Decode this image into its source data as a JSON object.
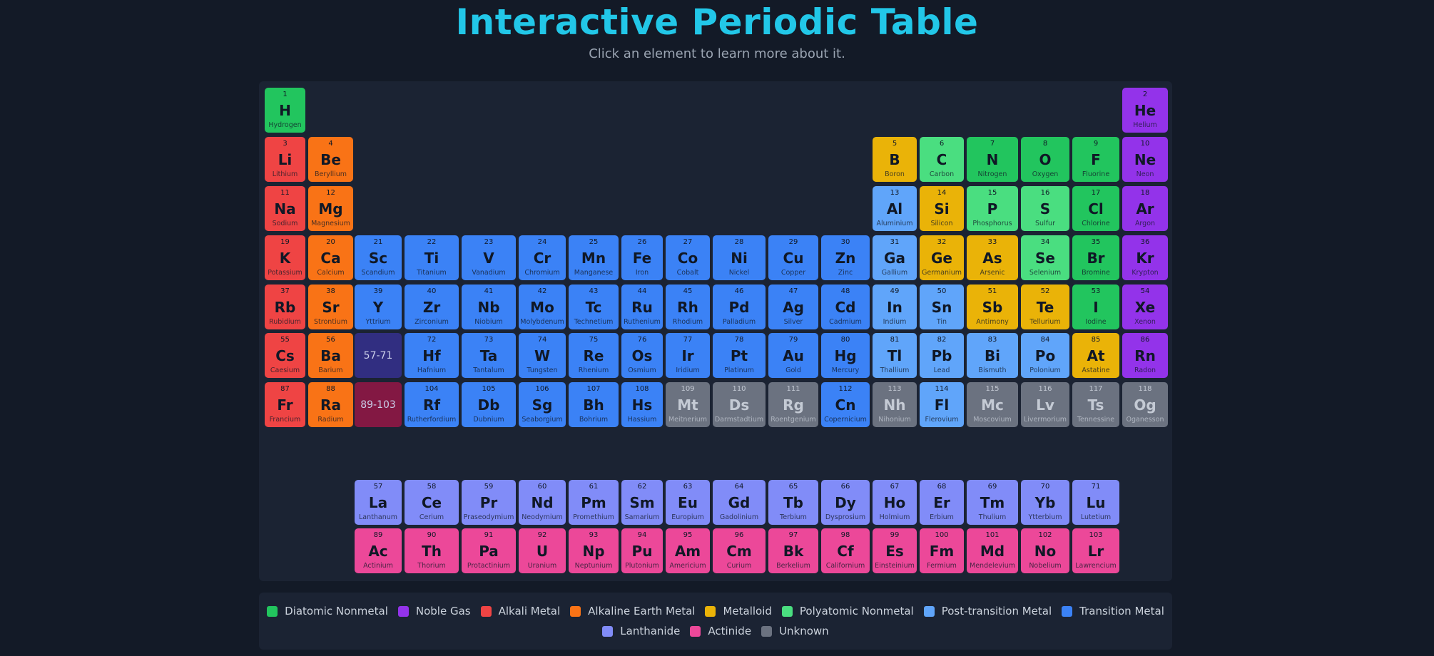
{
  "header": {
    "title": "Interactive Periodic Table",
    "subtitle": "Click an element to learn more about it."
  },
  "categories": {
    "diatomic": {
      "label": "Diatomic Nonmetal",
      "color": "#22c55e"
    },
    "noble": {
      "label": "Noble Gas",
      "color": "#9333ea"
    },
    "alkali": {
      "label": "Alkali Metal",
      "color": "#ef4444"
    },
    "alkaline": {
      "label": "Alkaline Earth Metal",
      "color": "#f97316"
    },
    "metalloid": {
      "label": "Metalloid",
      "color": "#eab308"
    },
    "polyatomic": {
      "label": "Polyatomic Nonmetal",
      "color": "#4ade80"
    },
    "post": {
      "label": "Post-transition Metal",
      "color": "#60a5fa"
    },
    "transition": {
      "label": "Transition Metal",
      "color": "#3b82f6"
    },
    "lanthanide": {
      "label": "Lanthanide",
      "color": "#818cf8"
    },
    "actinide": {
      "label": "Actinide",
      "color": "#ec4899"
    },
    "unknown": {
      "label": "Unknown",
      "color": "#6b7280"
    }
  },
  "legend": {
    "row1": [
      "diatomic",
      "noble",
      "alkali",
      "alkaline",
      "metalloid",
      "polyatomic",
      "post",
      "transition"
    ],
    "row2": [
      "lanthanide",
      "actinide",
      "unknown"
    ]
  },
  "placeholders": {
    "lanthanides": {
      "label": "57-71",
      "color": "#312e81"
    },
    "actinides": {
      "label": "89-103",
      "color": "#831843"
    }
  },
  "elements": [
    {
      "n": 1,
      "s": "H",
      "name": "Hydrogen",
      "c": "diatomic",
      "row": 1,
      "col": 1
    },
    {
      "n": 2,
      "s": "He",
      "name": "Helium",
      "c": "noble",
      "row": 1,
      "col": 18
    },
    {
      "n": 3,
      "s": "Li",
      "name": "Lithium",
      "c": "alkali",
      "row": 2,
      "col": 1
    },
    {
      "n": 4,
      "s": "Be",
      "name": "Beryllium",
      "c": "alkaline",
      "row": 2,
      "col": 2
    },
    {
      "n": 5,
      "s": "B",
      "name": "Boron",
      "c": "metalloid",
      "row": 2,
      "col": 13
    },
    {
      "n": 6,
      "s": "C",
      "name": "Carbon",
      "c": "polyatomic",
      "row": 2,
      "col": 14
    },
    {
      "n": 7,
      "s": "N",
      "name": "Nitrogen",
      "c": "diatomic",
      "row": 2,
      "col": 15
    },
    {
      "n": 8,
      "s": "O",
      "name": "Oxygen",
      "c": "diatomic",
      "row": 2,
      "col": 16
    },
    {
      "n": 9,
      "s": "F",
      "name": "Fluorine",
      "c": "diatomic",
      "row": 2,
      "col": 17
    },
    {
      "n": 10,
      "s": "Ne",
      "name": "Neon",
      "c": "noble",
      "row": 2,
      "col": 18
    },
    {
      "n": 11,
      "s": "Na",
      "name": "Sodium",
      "c": "alkali",
      "row": 3,
      "col": 1
    },
    {
      "n": 12,
      "s": "Mg",
      "name": "Magnesium",
      "c": "alkaline",
      "row": 3,
      "col": 2
    },
    {
      "n": 13,
      "s": "Al",
      "name": "Aluminium",
      "c": "post",
      "row": 3,
      "col": 13
    },
    {
      "n": 14,
      "s": "Si",
      "name": "Silicon",
      "c": "metalloid",
      "row": 3,
      "col": 14
    },
    {
      "n": 15,
      "s": "P",
      "name": "Phosphorus",
      "c": "polyatomic",
      "row": 3,
      "col": 15
    },
    {
      "n": 16,
      "s": "S",
      "name": "Sulfur",
      "c": "polyatomic",
      "row": 3,
      "col": 16
    },
    {
      "n": 17,
      "s": "Cl",
      "name": "Chlorine",
      "c": "diatomic",
      "row": 3,
      "col": 17
    },
    {
      "n": 18,
      "s": "Ar",
      "name": "Argon",
      "c": "noble",
      "row": 3,
      "col": 18
    },
    {
      "n": 19,
      "s": "K",
      "name": "Potassium",
      "c": "alkali",
      "row": 4,
      "col": 1
    },
    {
      "n": 20,
      "s": "Ca",
      "name": "Calcium",
      "c": "alkaline",
      "row": 4,
      "col": 2
    },
    {
      "n": 21,
      "s": "Sc",
      "name": "Scandium",
      "c": "transition",
      "row": 4,
      "col": 3
    },
    {
      "n": 22,
      "s": "Ti",
      "name": "Titanium",
      "c": "transition",
      "row": 4,
      "col": 4
    },
    {
      "n": 23,
      "s": "V",
      "name": "Vanadium",
      "c": "transition",
      "row": 4,
      "col": 5
    },
    {
      "n": 24,
      "s": "Cr",
      "name": "Chromium",
      "c": "transition",
      "row": 4,
      "col": 6
    },
    {
      "n": 25,
      "s": "Mn",
      "name": "Manganese",
      "c": "transition",
      "row": 4,
      "col": 7
    },
    {
      "n": 26,
      "s": "Fe",
      "name": "Iron",
      "c": "transition",
      "row": 4,
      "col": 8
    },
    {
      "n": 27,
      "s": "Co",
      "name": "Cobalt",
      "c": "transition",
      "row": 4,
      "col": 9
    },
    {
      "n": 28,
      "s": "Ni",
      "name": "Nickel",
      "c": "transition",
      "row": 4,
      "col": 10
    },
    {
      "n": 29,
      "s": "Cu",
      "name": "Copper",
      "c": "transition",
      "row": 4,
      "col": 11
    },
    {
      "n": 30,
      "s": "Zn",
      "name": "Zinc",
      "c": "transition",
      "row": 4,
      "col": 12
    },
    {
      "n": 31,
      "s": "Ga",
      "name": "Gallium",
      "c": "post",
      "row": 4,
      "col": 13
    },
    {
      "n": 32,
      "s": "Ge",
      "name": "Germanium",
      "c": "metalloid",
      "row": 4,
      "col": 14
    },
    {
      "n": 33,
      "s": "As",
      "name": "Arsenic",
      "c": "metalloid",
      "row": 4,
      "col": 15
    },
    {
      "n": 34,
      "s": "Se",
      "name": "Selenium",
      "c": "polyatomic",
      "row": 4,
      "col": 16
    },
    {
      "n": 35,
      "s": "Br",
      "name": "Bromine",
      "c": "diatomic",
      "row": 4,
      "col": 17
    },
    {
      "n": 36,
      "s": "Kr",
      "name": "Krypton",
      "c": "noble",
      "row": 4,
      "col": 18
    },
    {
      "n": 37,
      "s": "Rb",
      "name": "Rubidium",
      "c": "alkali",
      "row": 5,
      "col": 1
    },
    {
      "n": 38,
      "s": "Sr",
      "name": "Strontium",
      "c": "alkaline",
      "row": 5,
      "col": 2
    },
    {
      "n": 39,
      "s": "Y",
      "name": "Yttrium",
      "c": "transition",
      "row": 5,
      "col": 3
    },
    {
      "n": 40,
      "s": "Zr",
      "name": "Zirconium",
      "c": "transition",
      "row": 5,
      "col": 4
    },
    {
      "n": 41,
      "s": "Nb",
      "name": "Niobium",
      "c": "transition",
      "row": 5,
      "col": 5
    },
    {
      "n": 42,
      "s": "Mo",
      "name": "Molybdenum",
      "c": "transition",
      "row": 5,
      "col": 6
    },
    {
      "n": 43,
      "s": "Tc",
      "name": "Technetium",
      "c": "transition",
      "row": 5,
      "col": 7
    },
    {
      "n": 44,
      "s": "Ru",
      "name": "Ruthenium",
      "c": "transition",
      "row": 5,
      "col": 8
    },
    {
      "n": 45,
      "s": "Rh",
      "name": "Rhodium",
      "c": "transition",
      "row": 5,
      "col": 9
    },
    {
      "n": 46,
      "s": "Pd",
      "name": "Palladium",
      "c": "transition",
      "row": 5,
      "col": 10
    },
    {
      "n": 47,
      "s": "Ag",
      "name": "Silver",
      "c": "transition",
      "row": 5,
      "col": 11
    },
    {
      "n": 48,
      "s": "Cd",
      "name": "Cadmium",
      "c": "transition",
      "row": 5,
      "col": 12
    },
    {
      "n": 49,
      "s": "In",
      "name": "Indium",
      "c": "post",
      "row": 5,
      "col": 13
    },
    {
      "n": 50,
      "s": "Sn",
      "name": "Tin",
      "c": "post",
      "row": 5,
      "col": 14
    },
    {
      "n": 51,
      "s": "Sb",
      "name": "Antimony",
      "c": "metalloid",
      "row": 5,
      "col": 15
    },
    {
      "n": 52,
      "s": "Te",
      "name": "Tellurium",
      "c": "metalloid",
      "row": 5,
      "col": 16
    },
    {
      "n": 53,
      "s": "I",
      "name": "Iodine",
      "c": "diatomic",
      "row": 5,
      "col": 17
    },
    {
      "n": 54,
      "s": "Xe",
      "name": "Xenon",
      "c": "noble",
      "row": 5,
      "col": 18
    },
    {
      "n": 55,
      "s": "Cs",
      "name": "Caesium",
      "c": "alkali",
      "row": 6,
      "col": 1
    },
    {
      "n": 56,
      "s": "Ba",
      "name": "Barium",
      "c": "alkaline",
      "row": 6,
      "col": 2
    },
    {
      "n": 72,
      "s": "Hf",
      "name": "Hafnium",
      "c": "transition",
      "row": 6,
      "col": 4
    },
    {
      "n": 73,
      "s": "Ta",
      "name": "Tantalum",
      "c": "transition",
      "row": 6,
      "col": 5
    },
    {
      "n": 74,
      "s": "W",
      "name": "Tungsten",
      "c": "transition",
      "row": 6,
      "col": 6
    },
    {
      "n": 75,
      "s": "Re",
      "name": "Rhenium",
      "c": "transition",
      "row": 6,
      "col": 7
    },
    {
      "n": 76,
      "s": "Os",
      "name": "Osmium",
      "c": "transition",
      "row": 6,
      "col": 8
    },
    {
      "n": 77,
      "s": "Ir",
      "name": "Iridium",
      "c": "transition",
      "row": 6,
      "col": 9
    },
    {
      "n": 78,
      "s": "Pt",
      "name": "Platinum",
      "c": "transition",
      "row": 6,
      "col": 10
    },
    {
      "n": 79,
      "s": "Au",
      "name": "Gold",
      "c": "transition",
      "row": 6,
      "col": 11
    },
    {
      "n": 80,
      "s": "Hg",
      "name": "Mercury",
      "c": "transition",
      "row": 6,
      "col": 12
    },
    {
      "n": 81,
      "s": "Tl",
      "name": "Thallium",
      "c": "post",
      "row": 6,
      "col": 13
    },
    {
      "n": 82,
      "s": "Pb",
      "name": "Lead",
      "c": "post",
      "row": 6,
      "col": 14
    },
    {
      "n": 83,
      "s": "Bi",
      "name": "Bismuth",
      "c": "post",
      "row": 6,
      "col": 15
    },
    {
      "n": 84,
      "s": "Po",
      "name": "Polonium",
      "c": "post",
      "row": 6,
      "col": 16
    },
    {
      "n": 85,
      "s": "At",
      "name": "Astatine",
      "c": "metalloid",
      "row": 6,
      "col": 17
    },
    {
      "n": 86,
      "s": "Rn",
      "name": "Radon",
      "c": "noble",
      "row": 6,
      "col": 18
    },
    {
      "n": 87,
      "s": "Fr",
      "name": "Francium",
      "c": "alkali",
      "row": 7,
      "col": 1
    },
    {
      "n": 88,
      "s": "Ra",
      "name": "Radium",
      "c": "alkaline",
      "row": 7,
      "col": 2
    },
    {
      "n": 104,
      "s": "Rf",
      "name": "Rutherfordium",
      "c": "transition",
      "row": 7,
      "col": 4
    },
    {
      "n": 105,
      "s": "Db",
      "name": "Dubnium",
      "c": "transition",
      "row": 7,
      "col": 5
    },
    {
      "n": 106,
      "s": "Sg",
      "name": "Seaborgium",
      "c": "transition",
      "row": 7,
      "col": 6
    },
    {
      "n": 107,
      "s": "Bh",
      "name": "Bohrium",
      "c": "transition",
      "row": 7,
      "col": 7
    },
    {
      "n": 108,
      "s": "Hs",
      "name": "Hassium",
      "c": "transition",
      "row": 7,
      "col": 8
    },
    {
      "n": 109,
      "s": "Mt",
      "name": "Meitnerium",
      "c": "unknown",
      "row": 7,
      "col": 9
    },
    {
      "n": 110,
      "s": "Ds",
      "name": "Darmstadtium",
      "c": "unknown",
      "row": 7,
      "col": 10
    },
    {
      "n": 111,
      "s": "Rg",
      "name": "Roentgenium",
      "c": "unknown",
      "row": 7,
      "col": 11
    },
    {
      "n": 112,
      "s": "Cn",
      "name": "Copernicium",
      "c": "transition",
      "row": 7,
      "col": 12
    },
    {
      "n": 113,
      "s": "Nh",
      "name": "Nihonium",
      "c": "unknown",
      "row": 7,
      "col": 13
    },
    {
      "n": 114,
      "s": "Fl",
      "name": "Flerovium",
      "c": "post",
      "row": 7,
      "col": 14
    },
    {
      "n": 115,
      "s": "Mc",
      "name": "Moscovium",
      "c": "unknown",
      "row": 7,
      "col": 15
    },
    {
      "n": 116,
      "s": "Lv",
      "name": "Livermorium",
      "c": "unknown",
      "row": 7,
      "col": 16
    },
    {
      "n": 117,
      "s": "Ts",
      "name": "Tennessine",
      "c": "unknown",
      "row": 7,
      "col": 17
    },
    {
      "n": 118,
      "s": "Og",
      "name": "Oganesson",
      "c": "unknown",
      "row": 7,
      "col": 18
    },
    {
      "n": 57,
      "s": "La",
      "name": "Lanthanum",
      "c": "lanthanide",
      "row": 9,
      "col": 3
    },
    {
      "n": 58,
      "s": "Ce",
      "name": "Cerium",
      "c": "lanthanide",
      "row": 9,
      "col": 4
    },
    {
      "n": 59,
      "s": "Pr",
      "name": "Praseodymium",
      "c": "lanthanide",
      "row": 9,
      "col": 5
    },
    {
      "n": 60,
      "s": "Nd",
      "name": "Neodymium",
      "c": "lanthanide",
      "row": 9,
      "col": 6
    },
    {
      "n": 61,
      "s": "Pm",
      "name": "Promethium",
      "c": "lanthanide",
      "row": 9,
      "col": 7
    },
    {
      "n": 62,
      "s": "Sm",
      "name": "Samarium",
      "c": "lanthanide",
      "row": 9,
      "col": 8
    },
    {
      "n": 63,
      "s": "Eu",
      "name": "Europium",
      "c": "lanthanide",
      "row": 9,
      "col": 9
    },
    {
      "n": 64,
      "s": "Gd",
      "name": "Gadolinium",
      "c": "lanthanide",
      "row": 9,
      "col": 10
    },
    {
      "n": 65,
      "s": "Tb",
      "name": "Terbium",
      "c": "lanthanide",
      "row": 9,
      "col": 11
    },
    {
      "n": 66,
      "s": "Dy",
      "name": "Dysprosium",
      "c": "lanthanide",
      "row": 9,
      "col": 12
    },
    {
      "n": 67,
      "s": "Ho",
      "name": "Holmium",
      "c": "lanthanide",
      "row": 9,
      "col": 13
    },
    {
      "n": 68,
      "s": "Er",
      "name": "Erbium",
      "c": "lanthanide",
      "row": 9,
      "col": 14
    },
    {
      "n": 69,
      "s": "Tm",
      "name": "Thulium",
      "c": "lanthanide",
      "row": 9,
      "col": 15
    },
    {
      "n": 70,
      "s": "Yb",
      "name": "Ytterbium",
      "c": "lanthanide",
      "row": 9,
      "col": 16
    },
    {
      "n": 71,
      "s": "Lu",
      "name": "Lutetium",
      "c": "lanthanide",
      "row": 9,
      "col": 17
    },
    {
      "n": 89,
      "s": "Ac",
      "name": "Actinium",
      "c": "actinide",
      "row": 10,
      "col": 3
    },
    {
      "n": 90,
      "s": "Th",
      "name": "Thorium",
      "c": "actinide",
      "row": 10,
      "col": 4
    },
    {
      "n": 91,
      "s": "Pa",
      "name": "Protactinium",
      "c": "actinide",
      "row": 10,
      "col": 5
    },
    {
      "n": 92,
      "s": "U",
      "name": "Uranium",
      "c": "actinide",
      "row": 10,
      "col": 6
    },
    {
      "n": 93,
      "s": "Np",
      "name": "Neptunium",
      "c": "actinide",
      "row": 10,
      "col": 7
    },
    {
      "n": 94,
      "s": "Pu",
      "name": "Plutonium",
      "c": "actinide",
      "row": 10,
      "col": 8
    },
    {
      "n": 95,
      "s": "Am",
      "name": "Americium",
      "c": "actinide",
      "row": 10,
      "col": 9
    },
    {
      "n": 96,
      "s": "Cm",
      "name": "Curium",
      "c": "actinide",
      "row": 10,
      "col": 10
    },
    {
      "n": 97,
      "s": "Bk",
      "name": "Berkelium",
      "c": "actinide",
      "row": 10,
      "col": 11
    },
    {
      "n": 98,
      "s": "Cf",
      "name": "Californium",
      "c": "actinide",
      "row": 10,
      "col": 12
    },
    {
      "n": 99,
      "s": "Es",
      "name": "Einsteinium",
      "c": "actinide",
      "row": 10,
      "col": 13
    },
    {
      "n": 100,
      "s": "Fm",
      "name": "Fermium",
      "c": "actinide",
      "row": 10,
      "col": 14
    },
    {
      "n": 101,
      "s": "Md",
      "name": "Mendelevium",
      "c": "actinide",
      "row": 10,
      "col": 15
    },
    {
      "n": 102,
      "s": "No",
      "name": "Nobelium",
      "c": "actinide",
      "row": 10,
      "col": 16
    },
    {
      "n": 103,
      "s": "Lr",
      "name": "Lawrencium",
      "c": "actinide",
      "row": 10,
      "col": 17
    }
  ]
}
